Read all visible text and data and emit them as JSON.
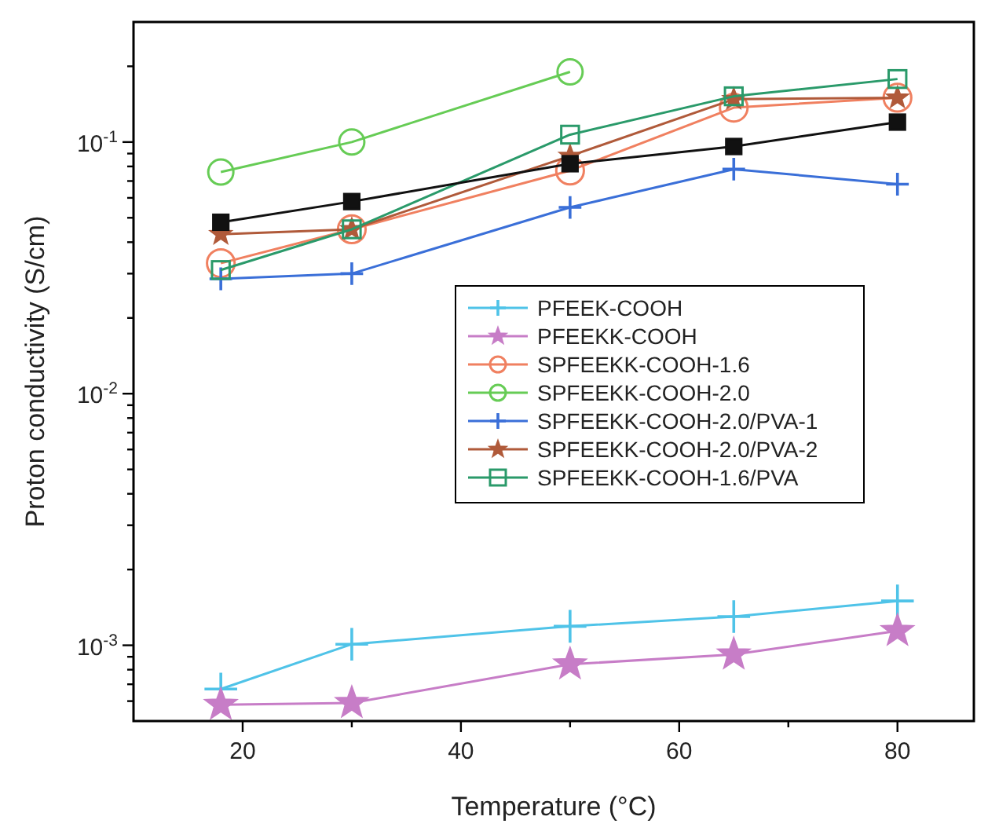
{
  "chart_data": {
    "type": "line",
    "xlabel": "Temperature (°C)",
    "ylabel": "Proton conductivity (S/cm)",
    "log": "y",
    "legend": "right",
    "grid": false,
    "x": [
      18,
      30,
      50,
      65,
      80
    ],
    "xlim": [
      10,
      87
    ],
    "xticks": [
      20,
      {
        "value": 30,
        "label": null
      },
      40,
      {
        "value": 50,
        "label": null
      },
      60,
      {
        "value": 70,
        "label": null
      },
      80
    ],
    "ylim": [
      0.0005,
      0.3
    ],
    "yticks": [
      {
        "value": 0.0006,
        "label": null
      },
      {
        "value": 0.0007,
        "label": null
      },
      {
        "value": 0.0008,
        "label": null
      },
      {
        "value": 0.0009,
        "label": null
      },
      {
        "value": 0.001,
        "label": "10$^{-3}$"
      },
      {
        "value": 0.002,
        "label": null
      },
      {
        "value": 0.003,
        "label": null
      },
      {
        "value": 0.004,
        "label": null
      },
      {
        "value": 0.005,
        "label": null
      },
      {
        "value": 0.006,
        "label": null
      },
      {
        "value": 0.007,
        "label": null
      },
      {
        "value": 0.008,
        "label": null
      },
      {
        "value": 0.009,
        "label": null
      },
      {
        "value": 0.01,
        "label": "10$^{-2}$"
      },
      {
        "value": 0.02,
        "label": null
      },
      {
        "value": 0.03,
        "label": null
      },
      {
        "value": 0.04,
        "label": null
      },
      {
        "value": 0.05,
        "label": null
      },
      {
        "value": 0.06,
        "label": null
      },
      {
        "value": 0.07,
        "label": null
      },
      {
        "value": 0.08,
        "label": null
      },
      {
        "value": 0.09,
        "label": null
      },
      {
        "value": 0.1,
        "label": "10$^{-1}$"
      },
      {
        "value": 0.2,
        "label": null
      }
    ],
    "series": [
      {
        "name": "PFEEK-COOH",
        "color": "#4fc3e8",
        "marker": "cross",
        "values": [
          0.00067,
          0.00101,
          0.00119,
          0.0013,
          0.0015
        ]
      },
      {
        "name": "PFEEKK-COOH",
        "color": "#c77dc7",
        "marker": "star",
        "values": [
          0.00058,
          0.00059,
          0.00084,
          0.00092,
          0.00114
        ]
      },
      {
        "name": "SPFEEKK-COOH-1.6",
        "color": "#f08060",
        "marker": "circle",
        "values": [
          0.033,
          0.045,
          0.077,
          0.137,
          0.15
        ]
      },
      {
        "name": "SPFEEKK-COOH-2.0",
        "color": "#66cc55",
        "marker": "circle",
        "values": [
          0.076,
          0.1,
          0.19,
          null,
          null
        ]
      },
      {
        "name": "SPFEEKK-COOH-2.0/PVA-1",
        "color": "#3a6fd8",
        "marker": "cross",
        "values": [
          0.0286,
          0.03,
          0.055,
          0.078,
          0.068
        ]
      },
      {
        "name": "SPFEEKK-COOH-2.0/PVA-2",
        "color": "#b05a3a",
        "marker": "star",
        "values": [
          0.043,
          0.045,
          0.088,
          0.148,
          0.15
        ]
      },
      {
        "name": "SPFEEKK-COOH-1.6/PVA",
        "color": "#2a9a6a",
        "marker": "square",
        "values": [
          0.031,
          0.045,
          0.107,
          0.152,
          0.178
        ]
      },
      {
        "color": "#111111",
        "marker": "square",
        "values": [
          0.048,
          0.058,
          0.082,
          0.096,
          0.12
        ]
      }
    ]
  }
}
